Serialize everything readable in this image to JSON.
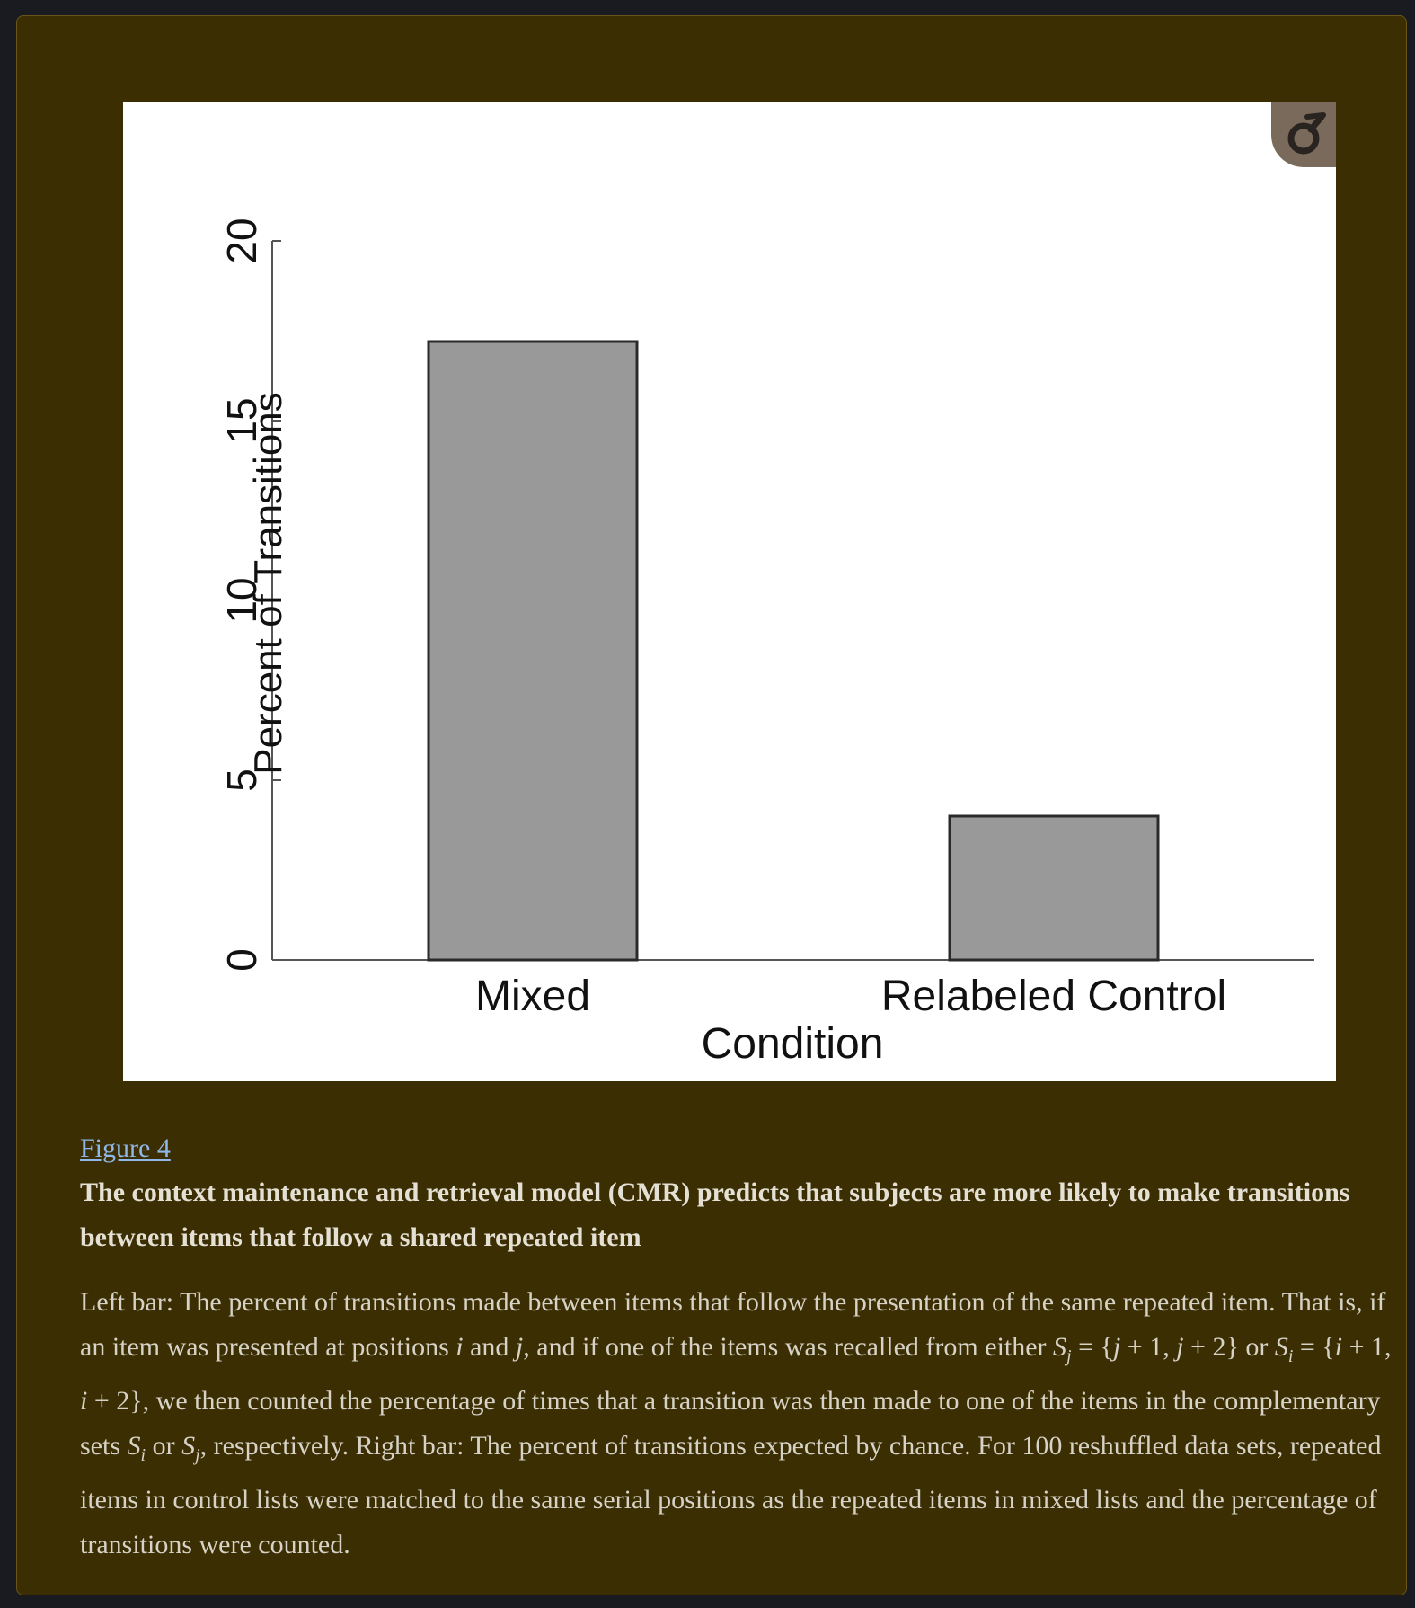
{
  "colors": {
    "page_background": "#1a1b20",
    "panel_background": "#3b2e03",
    "bar_fill": "#999999",
    "link": "#8fb8e8"
  },
  "expand_button": {
    "icon": "expand-icon"
  },
  "chart_data": {
    "type": "bar",
    "categories": [
      "Mixed",
      "Relabeled Control"
    ],
    "values": [
      17.2,
      4.0
    ],
    "title": "",
    "xlabel": "Condition",
    "ylabel": "Percent of Transitions",
    "ylim": [
      0,
      20
    ],
    "yticks": [
      0,
      5,
      10,
      15,
      20
    ],
    "grid": false
  },
  "caption": {
    "link": "Figure 4",
    "title": "The context maintenance and retrieval model (CMR) predicts that subjects are more likely to make transitions between items that follow a shared repeated item",
    "body_html": "Left bar: The percent of transitions made between items that follow the presentation of the same repeated item. That is, if an item was presented at positions <i>i</i> and <i>j</i>, and if one of the items was recalled from either <i>S</i><sub>j</sub> = {<i>j</i> + 1, <i>j</i> + 2} or <i>S</i><sub>i</sub> = {<i>i</i> + 1, <i>i</i> + 2}, we then counted the percentage of times that a transition was then made to one of the items in the complementary sets <i>S</i><sub>i</sub> or <i>S</i><sub>j</sub>, respectively. Right bar: The percent of transitions expected by chance. For 100 reshuffled data sets, repeated items in control lists were matched to the same serial positions as the repeated items in mixed lists and the percentage of transitions were counted."
  }
}
